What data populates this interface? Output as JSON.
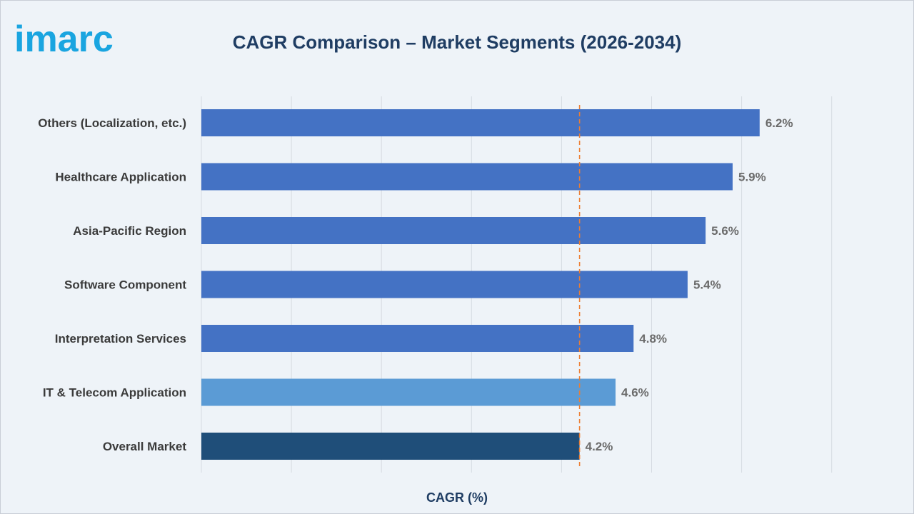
{
  "brand": {
    "logo_text": "imarc",
    "logo_color": "#1aa5e0"
  },
  "chart_data": {
    "type": "bar",
    "orientation": "horizontal",
    "title": "CAGR Comparison – Market Segments (2026-2034)",
    "xlabel": "CAGR (%)",
    "ylabel": "",
    "categories": [
      "Others (Localization, etc.)",
      "Healthcare Application",
      "Asia-Pacific Region",
      "Software Component",
      "Interpretation Services",
      "IT & Telecom Application",
      "Overall Market"
    ],
    "values": [
      6.2,
      5.9,
      5.6,
      5.4,
      4.8,
      4.6,
      4.2
    ],
    "data_labels": [
      "6.2%",
      "5.9%",
      "5.6%",
      "5.4%",
      "4.8%",
      "4.6%",
      "4.2%"
    ],
    "bar_colors": [
      "#4472c4",
      "#4472c4",
      "#4472c4",
      "#4472c4",
      "#4472c4",
      "#5b9bd5",
      "#1f4e79"
    ],
    "xlim": [
      0,
      7
    ],
    "grid": "vertical",
    "reference_line": {
      "value": 4.2,
      "style": "dashed",
      "color": "#ed7d31"
    },
    "legend": "none"
  }
}
